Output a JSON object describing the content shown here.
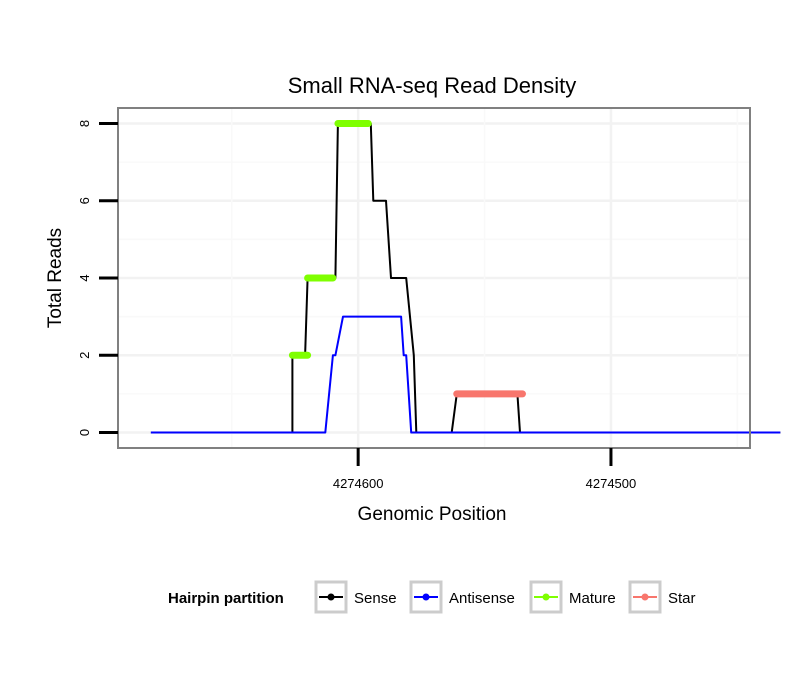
{
  "chart_data": {
    "type": "line",
    "title": "Small RNA-seq Read Density",
    "xlabel": "Genomic Position",
    "ylabel": "Total Reads",
    "x_reversed": true,
    "xlim": [
      4274695,
      4274445
    ],
    "ylim": [
      -0.4,
      8.4
    ],
    "x_ticks": [
      4274600,
      4274500
    ],
    "y_ticks": [
      0,
      2,
      4,
      6,
      8
    ],
    "series": [
      {
        "name": "Sense",
        "color": "#000000",
        "points": [
          [
            4274682,
            0
          ],
          [
            4274626,
            0
          ],
          [
            4274626,
            2
          ],
          [
            4274621,
            2
          ],
          [
            4274620,
            4
          ],
          [
            4274609,
            4
          ],
          [
            4274608,
            8
          ],
          [
            4274595,
            8
          ],
          [
            4274594,
            6
          ],
          [
            4274589,
            6
          ],
          [
            4274587,
            4
          ],
          [
            4274581,
            4
          ],
          [
            4274578,
            2
          ],
          [
            4274577,
            0
          ],
          [
            4274563,
            0
          ],
          [
            4274561,
            1
          ],
          [
            4274537,
            1
          ],
          [
            4274536,
            0
          ],
          [
            4274433,
            0
          ]
        ]
      },
      {
        "name": "Antisense",
        "color": "#0000ff",
        "points": [
          [
            4274682,
            0
          ],
          [
            4274613,
            0
          ],
          [
            4274610,
            2
          ],
          [
            4274609,
            2
          ],
          [
            4274606,
            3
          ],
          [
            4274583,
            3
          ],
          [
            4274582,
            2
          ],
          [
            4274581,
            2
          ],
          [
            4274579,
            0
          ],
          [
            4274433,
            0
          ]
        ]
      },
      {
        "name": "Mature",
        "color": "#7fff00",
        "segments": [
          {
            "x": [
              4274626,
              4274620
            ],
            "y": 2
          },
          {
            "x": [
              4274620,
              4274610
            ],
            "y": 4
          },
          {
            "x": [
              4274608,
              4274596
            ],
            "y": 8
          }
        ]
      },
      {
        "name": "Star",
        "color": "#f8766d",
        "segments": [
          {
            "x": [
              4274561,
              4274535
            ],
            "y": 1
          }
        ]
      }
    ]
  },
  "legend": {
    "title": "Hairpin partition",
    "items": [
      {
        "label": "Sense",
        "color": "#000000"
      },
      {
        "label": "Antisense",
        "color": "#0000ff"
      },
      {
        "label": "Mature",
        "color": "#7fff00"
      },
      {
        "label": "Star",
        "color": "#f8766d"
      }
    ]
  }
}
